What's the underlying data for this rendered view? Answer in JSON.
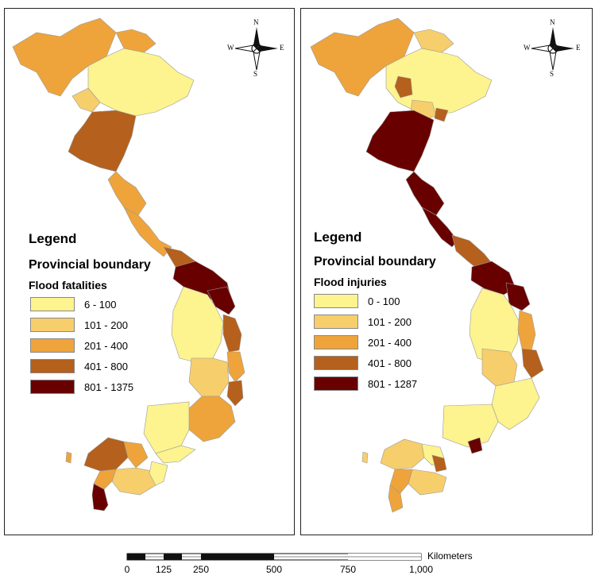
{
  "compass": {
    "n": "N",
    "s": "S",
    "e": "E",
    "w": "W"
  },
  "left_panel": {
    "legend_title": "Legend",
    "boundary_label": "Provincial boundary",
    "variable_label": "Flood fatalities",
    "classes": [
      {
        "label": "6 - 100",
        "color": "#fdf38f"
      },
      {
        "label": "101 - 200",
        "color": "#f7ce6c"
      },
      {
        "label": "201 - 400",
        "color": "#eea43b"
      },
      {
        "label": "401 - 800",
        "color": "#b5601c"
      },
      {
        "label": "801 - 1375",
        "color": "#680000"
      }
    ]
  },
  "right_panel": {
    "legend_title": "Legend",
    "boundary_label": "Provincial boundary",
    "variable_label": "Flood injuries",
    "classes": [
      {
        "label": "0 - 100",
        "color": "#fdf38f"
      },
      {
        "label": "101 - 200",
        "color": "#f7ce6c"
      },
      {
        "label": "201 - 400",
        "color": "#eea43b"
      },
      {
        "label": "401 - 800",
        "color": "#b5601c"
      },
      {
        "label": "801 - 1287",
        "color": "#680000"
      }
    ]
  },
  "scale_bar": {
    "units": "Kilometers",
    "ticks": [
      "0",
      "125",
      "250",
      "500",
      "750",
      "1,000"
    ]
  }
}
